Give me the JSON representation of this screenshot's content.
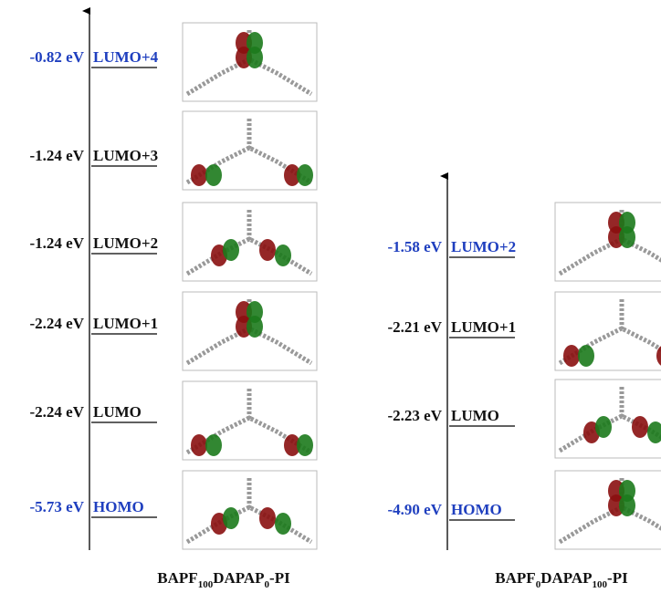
{
  "panels": [
    {
      "title": [
        "BAPF",
        "100",
        "DAPAP",
        "0",
        "-PI"
      ],
      "levels": [
        {
          "energy": "-0.82 eV",
          "label": "LUMO+4",
          "color": "#1f3fbf"
        },
        {
          "energy": "-1.24 eV",
          "label": "LUMO+3",
          "color": "#111111"
        },
        {
          "energy": "-1.24 eV",
          "label": "LUMO+2",
          "color": "#111111"
        },
        {
          "energy": "-2.24 eV",
          "label": "LUMO+1",
          "color": "#111111"
        },
        {
          "energy": "-2.24 eV",
          "label": "LUMO",
          "color": "#111111"
        },
        {
          "energy": "-5.73 eV",
          "label": "HOMO",
          "color": "#1f3fbf"
        }
      ]
    },
    {
      "title": [
        "BAPF",
        "0",
        "DAPAP",
        "100",
        "-PI"
      ],
      "levels": [
        {
          "energy": "-1.58 eV",
          "label": "LUMO+2",
          "color": "#1f3fbf"
        },
        {
          "energy": "-2.21 eV",
          "label": "LUMO+1",
          "color": "#111111"
        },
        {
          "energy": "-2.23 eV",
          "label": "LUMO",
          "color": "#111111"
        },
        {
          "energy": "-4.90 eV",
          "label": "HOMO",
          "color": "#1f3fbf"
        }
      ]
    }
  ]
}
